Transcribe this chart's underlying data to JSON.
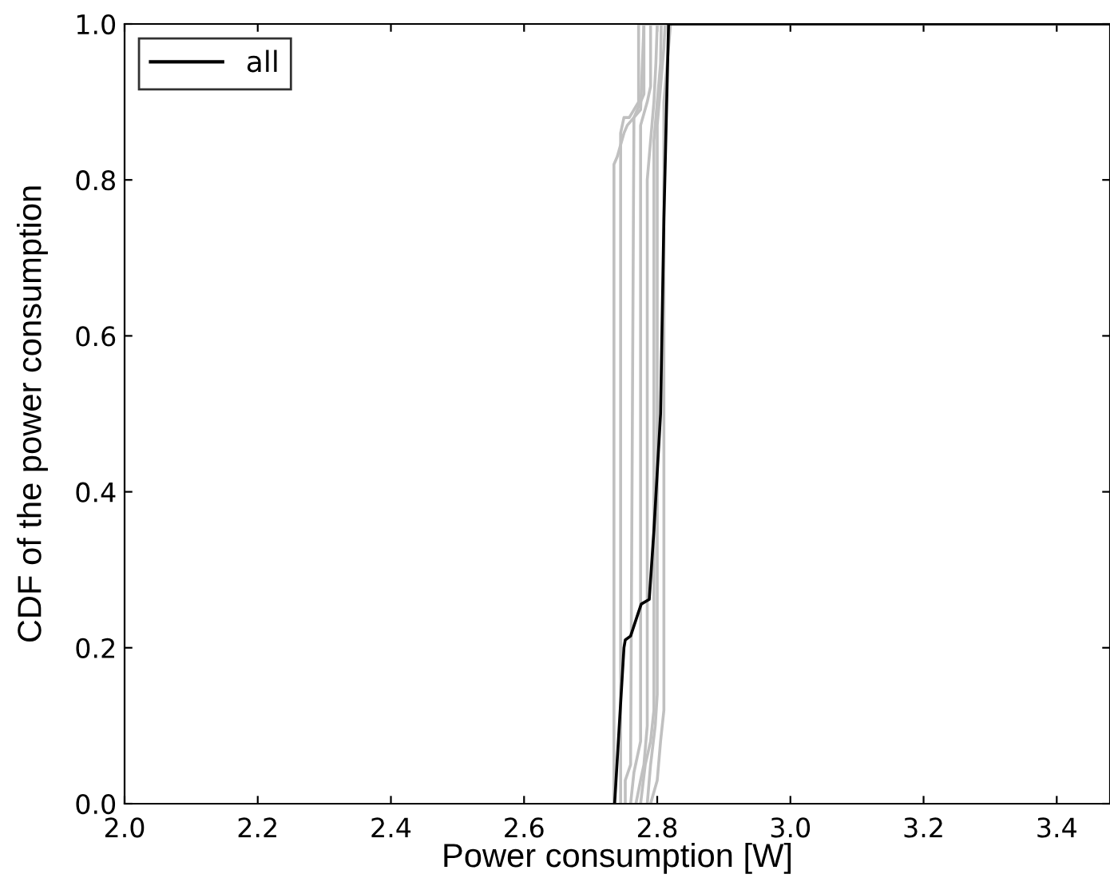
{
  "chart_data": {
    "type": "line",
    "xlabel": "Power consumption [W]",
    "ylabel": "CDF of the power consumption",
    "xlim": [
      2.0,
      3.48
    ],
    "ylim": [
      0.0,
      1.0
    ],
    "xticks": [
      {
        "value": 2.0,
        "label": "2.0"
      },
      2.2,
      2.4,
      2.6,
      2.8,
      {
        "value": 3.0,
        "label": "3.0"
      },
      3.2,
      3.4
    ],
    "yticks": [
      {
        "value": 0.0,
        "label": "0.0"
      },
      0.2,
      0.4,
      0.6,
      0.8,
      {
        "value": 1.0,
        "label": "1.0"
      }
    ],
    "grid": false,
    "legend": "top left",
    "marker": "none",
    "line_style": "solid",
    "series": [
      {
        "color": "#c0c0c0",
        "x": [
          2.735,
          2.735,
          2.74,
          2.75,
          2.755,
          2.765,
          2.775,
          2.78,
          2.82,
          3.48
        ],
        "values": [
          0.0,
          0.82,
          0.83,
          0.86,
          0.87,
          0.88,
          0.89,
          1.0,
          1.0,
          1.0
        ]
      },
      {
        "color": "#c0c0c0",
        "x": [
          2.745,
          2.745,
          2.75,
          2.758,
          2.765,
          2.772,
          2.772,
          2.79
        ],
        "values": [
          0.0,
          0.86,
          0.88,
          0.88,
          0.89,
          0.9,
          1.0,
          1.0
        ]
      },
      {
        "color": "#c0c0c0",
        "x": [
          2.752,
          2.752,
          2.76,
          2.765,
          2.775,
          2.78,
          2.78,
          2.8
        ],
        "values": [
          0.0,
          0.03,
          0.05,
          0.88,
          0.9,
          0.91,
          1.0,
          1.0
        ]
      },
      {
        "color": "#c0c0c0",
        "x": [
          2.76,
          2.765,
          2.77,
          2.775,
          2.775,
          2.785,
          2.79,
          2.79,
          2.81
        ],
        "values": [
          0.0,
          0.04,
          0.06,
          0.08,
          0.87,
          0.9,
          0.92,
          1.0,
          1.0
        ]
      },
      {
        "color": "#c0c0c0",
        "x": [
          2.768,
          2.775,
          2.78,
          2.785,
          2.785,
          2.79,
          2.795,
          2.798,
          2.8,
          2.82
        ],
        "values": [
          0.0,
          0.03,
          0.05,
          0.1,
          0.8,
          0.85,
          0.9,
          0.95,
          1.0,
          1.0
        ]
      },
      {
        "color": "#c0c0c0",
        "x": [
          2.775,
          2.782,
          2.79,
          2.795,
          2.795,
          2.8,
          2.805,
          2.806,
          2.83
        ],
        "values": [
          0.0,
          0.05,
          0.08,
          0.12,
          0.85,
          0.9,
          0.95,
          1.0,
          1.0
        ]
      },
      {
        "color": "#c0c0c0",
        "x": [
          2.785,
          2.79,
          2.797,
          2.8,
          2.8,
          2.806,
          2.81,
          2.812
        ],
        "values": [
          0.0,
          0.05,
          0.1,
          0.14,
          0.87,
          0.93,
          0.97,
          1.0
        ]
      },
      {
        "color": "#c0c0c0",
        "x": [
          2.79,
          2.8,
          2.805,
          2.81,
          2.81,
          2.815,
          2.82,
          3.48
        ],
        "values": [
          0.0,
          0.03,
          0.08,
          0.12,
          0.9,
          0.95,
          1.0,
          1.0
        ]
      },
      {
        "name": "all",
        "color": "#000000",
        "x": [
          2.736,
          2.75,
          2.752,
          2.76,
          2.772,
          2.776,
          2.788,
          2.795,
          2.805,
          2.81,
          2.817,
          3.48
        ],
        "values": [
          0.0,
          0.2,
          0.21,
          0.215,
          0.246,
          0.256,
          0.262,
          0.35,
          0.5,
          0.75,
          1.0,
          1.0
        ]
      }
    ]
  }
}
